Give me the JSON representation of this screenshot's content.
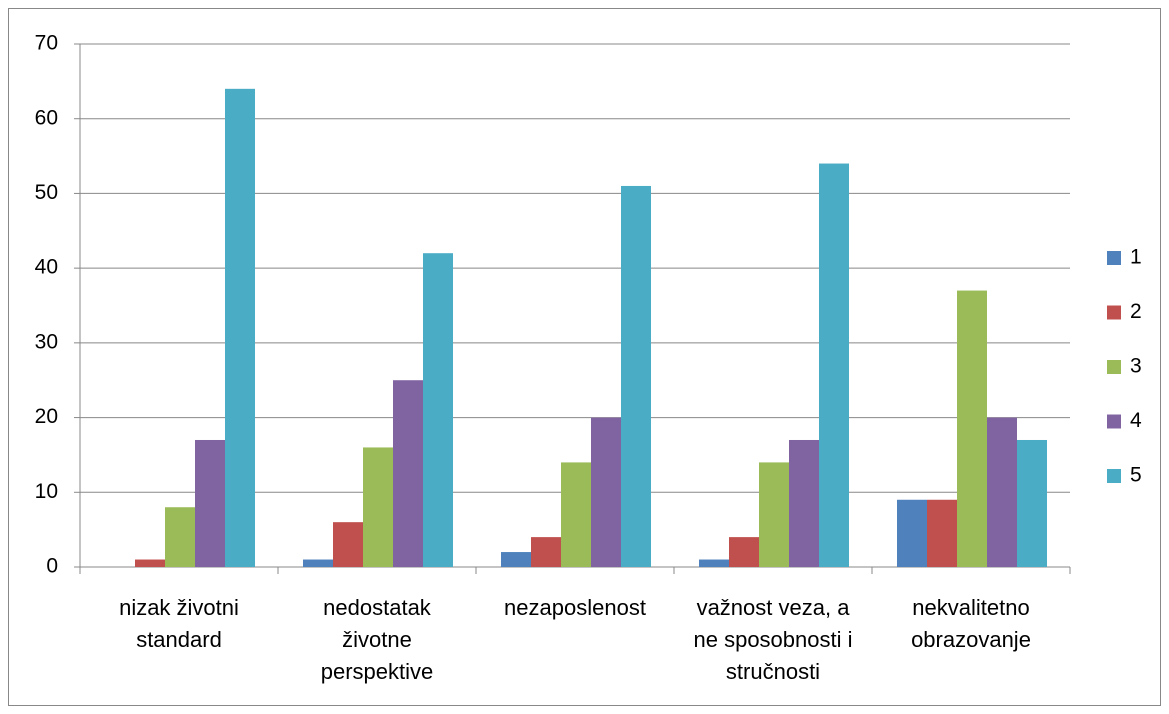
{
  "chart_data": {
    "type": "bar",
    "categories": [
      "nizak životni standard",
      "nedostatak životne perspektive",
      "nezaposlenost",
      "važnost veza, a ne sposobnosti i stručnosti",
      "nekvalitetno obrazovanje"
    ],
    "series": [
      {
        "name": "1",
        "color": "#4f81bd",
        "values": [
          0,
          1,
          2,
          1,
          9
        ]
      },
      {
        "name": "2",
        "color": "#c0504d",
        "values": [
          1,
          6,
          4,
          4,
          9
        ]
      },
      {
        "name": "3",
        "color": "#9bbb59",
        "values": [
          8,
          16,
          14,
          14,
          37
        ]
      },
      {
        "name": "4",
        "color": "#8064a2",
        "values": [
          17,
          25,
          20,
          17,
          20
        ]
      },
      {
        "name": "5",
        "color": "#4bacc6",
        "values": [
          64,
          42,
          51,
          54,
          17
        ]
      }
    ],
    "ylim": [
      0,
      70
    ],
    "yticks": [
      0,
      10,
      20,
      30,
      40,
      50,
      60,
      70
    ],
    "grid": true,
    "legend": "right"
  }
}
